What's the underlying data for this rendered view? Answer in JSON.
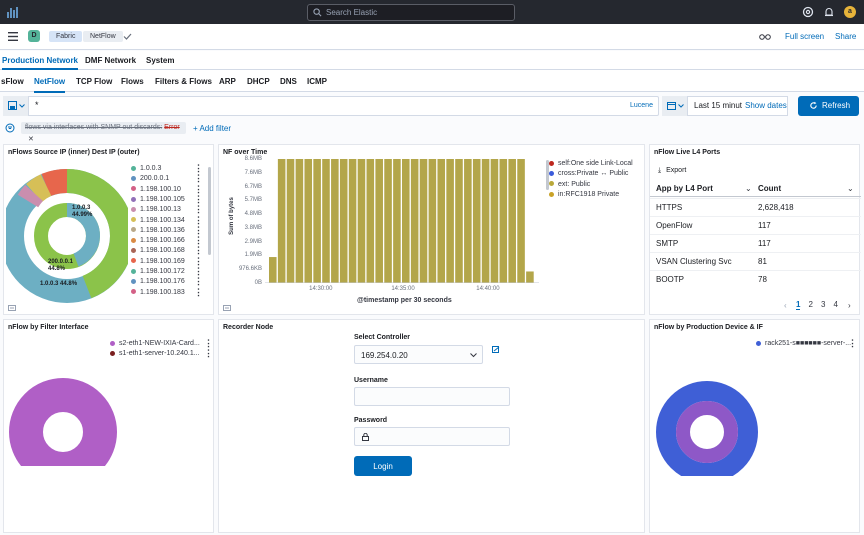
{
  "header": {
    "search_placeholder": "Search Elastic",
    "avatar_initial": "a"
  },
  "navbar": {
    "space_badge": "D",
    "breadcrumbs": [
      "Fabric",
      "NetFlow"
    ],
    "full_screen": "Full screen",
    "share": "Share"
  },
  "tabs_primary": [
    {
      "label": "Production Network",
      "active": true
    },
    {
      "label": "DMF Network",
      "active": false
    },
    {
      "label": "System",
      "active": false
    }
  ],
  "tabs_secondary": [
    {
      "label": "sFlow",
      "active": false
    },
    {
      "label": "NetFlow",
      "active": true
    },
    {
      "label": "TCP Flow",
      "active": false
    },
    {
      "label": "Flows",
      "active": false
    },
    {
      "label": "Filters & Flows",
      "active": false
    },
    {
      "label": "ARP",
      "active": false
    },
    {
      "label": "DHCP",
      "active": false
    },
    {
      "label": "DNS",
      "active": false
    },
    {
      "label": "ICMP",
      "active": false
    }
  ],
  "query": {
    "value": "*",
    "language": "Lucene",
    "time_range": "Last 15 minut",
    "show_dates": "Show dates",
    "refresh": "Refresh"
  },
  "filters": {
    "pill_text": "flows via interfaces with SNMP out discards:",
    "pill_error": "Error",
    "add_filter": "+ Add filter"
  },
  "panels": {
    "src_ip": {
      "title": "nFlows Source IP (inner) Dest IP (outer)",
      "legend": [
        {
          "label": "1.0.0.3",
          "color": "#54b399"
        },
        {
          "label": "200.0.0.1",
          "color": "#6092c0"
        },
        {
          "label": "1.198.100.10",
          "color": "#d36086"
        },
        {
          "label": "1.198.100.105",
          "color": "#9170b8"
        },
        {
          "label": "1.198.100.13",
          "color": "#ca8eae"
        },
        {
          "label": "1.198.100.134",
          "color": "#d6bf57"
        },
        {
          "label": "1.198.100.136",
          "color": "#b9a888"
        },
        {
          "label": "1.198.100.166",
          "color": "#da8b45"
        },
        {
          "label": "1.198.100.168",
          "color": "#aa6556"
        },
        {
          "label": "1.198.100.169",
          "color": "#e7664c"
        },
        {
          "label": "1.198.100.172",
          "color": "#54b399"
        },
        {
          "label": "1.198.100.176",
          "color": "#6092c0"
        },
        {
          "label": "1.198.100.183",
          "color": "#d36086"
        }
      ],
      "inner_labels": [
        {
          "ip": "1.0.0.3",
          "pct": "44.99%"
        },
        {
          "ip": "200.0.0.1",
          "pct": "44.8%"
        }
      ],
      "outer_label": "1.0.0.3 44.8%"
    },
    "nf_time": {
      "title": "NF over Time",
      "chart_data": {
        "type": "bar",
        "ylabel": "Sum of bytes",
        "xlabel": "@timestamp per 30 seconds",
        "y_ticks": [
          "8.6MB",
          "7.6MB",
          "6.7MB",
          "5.7MB",
          "4.8MB",
          "3.8MB",
          "2.9MB",
          "1.9MB",
          "976.6KB",
          "0B"
        ],
        "x_ticks": [
          "14:30:00",
          "14:35:00",
          "14:40:00"
        ],
        "series": [
          {
            "name": "self:One side Link-Local",
            "color": "#bd271e"
          },
          {
            "name": "cross:Private ↔ Public",
            "color": "#3b5bdb"
          },
          {
            "name": "ext: Public",
            "color": "#b9a83a"
          },
          {
            "name": "in:RFC1918 Private",
            "color": "#c9a227"
          }
        ],
        "bar_color": "#b3a64a",
        "bars_mb": [
          1.8,
          8.6,
          8.6,
          8.6,
          8.6,
          8.6,
          8.6,
          8.6,
          8.6,
          8.6,
          8.6,
          8.6,
          8.6,
          8.6,
          8.6,
          8.6,
          8.6,
          8.6,
          8.6,
          8.6,
          8.6,
          8.6,
          8.6,
          8.6,
          8.6,
          8.6,
          8.6,
          8.6,
          8.6,
          0.8
        ],
        "ylim": [
          0,
          8.6
        ]
      }
    },
    "l4_ports": {
      "title": "nFlow Live L4 Ports",
      "export": "Export",
      "col1": "App by L4 Port",
      "col2": "Count",
      "rows": [
        {
          "app": "HTTPS",
          "count": "2,628,418"
        },
        {
          "app": "OpenFlow",
          "count": "117"
        },
        {
          "app": "SMTP",
          "count": "117"
        },
        {
          "app": "VSAN Clustering Svc",
          "count": "81"
        },
        {
          "app": "BOOTP",
          "count": "78"
        }
      ],
      "pages": [
        "1",
        "2",
        "3",
        "4"
      ]
    },
    "filter_iface": {
      "title": "nFlow by Filter Interface",
      "legend": [
        {
          "label": "s2-eth1-NEW-IXIA-Card...",
          "color": "#b05fc6"
        },
        {
          "label": "s1-eth1-server-10.240.1...",
          "color": "#7a1f1f"
        }
      ]
    },
    "recorder": {
      "title": "Recorder Node",
      "select_label": "Select Controller",
      "select_value": "169.254.0.20",
      "username_label": "Username",
      "password_label": "Password",
      "login": "Login"
    },
    "prod_device": {
      "title": "nFlow by Production Device & IF",
      "legend": [
        {
          "label": "rack251-s■■■■■■-server-...",
          "color": "#3f5fd6"
        }
      ]
    }
  }
}
